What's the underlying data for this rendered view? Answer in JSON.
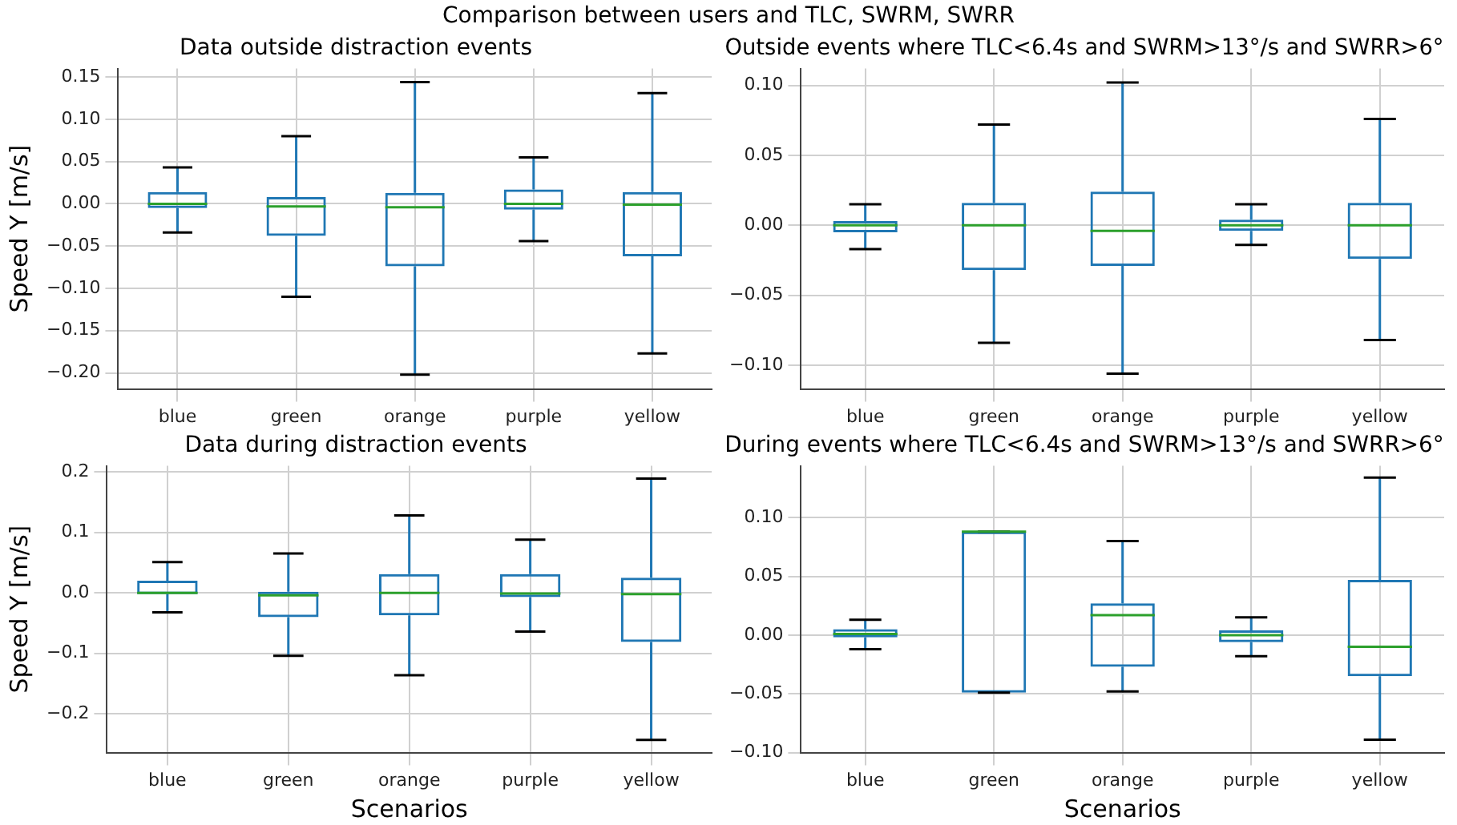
{
  "chart_data": [
    {
      "type": "box",
      "title": "Data outside distraction events",
      "ylabel": "Speed Y [m/s]",
      "annotations": [
        "Comparison between users and TLC, SWRM, SWRR"
      ],
      "categories": [
        "blue",
        "green",
        "orange",
        "purple",
        "yellow"
      ],
      "ylim": [
        -0.219,
        0.16
      ],
      "yticks": [
        {
          "value": 0.15,
          "label": "0.15"
        },
        {
          "value": 0.1,
          "label": "0.10"
        },
        {
          "value": 0.05,
          "label": "0.05"
        },
        {
          "value": 0,
          "label": "0.00"
        },
        {
          "value": -0.05,
          "label": "−0.05"
        },
        {
          "value": -0.1,
          "label": "−0.10"
        },
        {
          "value": -0.15,
          "label": "−0.15"
        },
        {
          "value": -0.2,
          "label": "−0.20"
        }
      ],
      "grid": true,
      "series": [
        {
          "color": "#1f77b4",
          "boxes": [
            {
              "low": -0.034,
              "q1": -0.005,
              "median": 0,
              "q3": 0.014,
              "high": 0.043
            },
            {
              "low": -0.11,
              "q1": -0.038,
              "median": -0.003,
              "q3": 0.008,
              "high": 0.08
            },
            {
              "low": -0.202,
              "q1": -0.074,
              "median": -0.004,
              "q3": 0.013,
              "high": 0.144
            },
            {
              "low": -0.044,
              "q1": -0.007,
              "median": 0,
              "q3": 0.017,
              "high": 0.055
            },
            {
              "low": -0.177,
              "q1": -0.062,
              "median": -0.001,
              "q3": 0.014,
              "high": 0.131
            }
          ]
        }
      ]
    },
    {
      "type": "box",
      "title": "Outside events where TLC<6.4s and SWRM>13°/s and SWRR>6°",
      "categories": [
        "blue",
        "green",
        "orange",
        "purple",
        "yellow"
      ],
      "ylim": [
        -0.117,
        0.112
      ],
      "yticks": [
        {
          "value": 0.1,
          "label": "0.10"
        },
        {
          "value": 0.05,
          "label": "0.05"
        },
        {
          "value": 0,
          "label": "0.00"
        },
        {
          "value": -0.05,
          "label": "−0.05"
        },
        {
          "value": -0.1,
          "label": "−0.10"
        }
      ],
      "grid": true,
      "series": [
        {
          "color": "#1f77b4",
          "boxes": [
            {
              "low": -0.017,
              "q1": -0.005,
              "median": 0,
              "q3": 0.003,
              "high": 0.015
            },
            {
              "low": -0.084,
              "q1": -0.032,
              "median": 0,
              "q3": 0.016,
              "high": 0.072
            },
            {
              "low": -0.106,
              "q1": -0.029,
              "median": -0.004,
              "q3": 0.024,
              "high": 0.102
            },
            {
              "low": -0.014,
              "q1": -0.004,
              "median": 0,
              "q3": 0.004,
              "high": 0.015
            },
            {
              "low": -0.082,
              "q1": -0.024,
              "median": 0,
              "q3": 0.016,
              "high": 0.076
            }
          ]
        }
      ]
    },
    {
      "type": "box",
      "title": "Data during distraction events",
      "xlabel": "Scenarios",
      "ylabel": "Speed Y [m/s]",
      "categories": [
        "blue",
        "green",
        "orange",
        "purple",
        "yellow"
      ],
      "ylim": [
        -0.264,
        0.21
      ],
      "yticks": [
        {
          "value": 0.2,
          "label": "0.2"
        },
        {
          "value": 0.1,
          "label": "0.1"
        },
        {
          "value": 0,
          "label": "0.0"
        },
        {
          "value": -0.1,
          "label": "−0.1"
        },
        {
          "value": -0.2,
          "label": "−0.2"
        }
      ],
      "grid": true,
      "series": [
        {
          "color": "#1f77b4",
          "boxes": [
            {
              "low": -0.032,
              "q1": -0.002,
              "median": 0,
              "q3": 0.02,
              "high": 0.051
            },
            {
              "low": -0.104,
              "q1": -0.04,
              "median": -0.004,
              "q3": 0.002,
              "high": 0.065
            },
            {
              "low": -0.136,
              "q1": -0.037,
              "median": 0,
              "q3": 0.031,
              "high": 0.128
            },
            {
              "low": -0.064,
              "q1": -0.007,
              "median": -0.001,
              "q3": 0.031,
              "high": 0.088
            },
            {
              "low": -0.243,
              "q1": -0.081,
              "median": -0.002,
              "q3": 0.025,
              "high": 0.189
            }
          ]
        }
      ]
    },
    {
      "type": "box",
      "title": "During events where TLC<6.4s and SWRM>13°/s and SWRR>6°",
      "xlabel": "Scenarios",
      "categories": [
        "blue",
        "green",
        "orange",
        "purple",
        "yellow"
      ],
      "ylim": [
        -0.1,
        0.144
      ],
      "yticks": [
        {
          "value": 0.1,
          "label": "0.10"
        },
        {
          "value": 0.05,
          "label": "0.05"
        },
        {
          "value": 0,
          "label": "0.00"
        },
        {
          "value": -0.05,
          "label": "−0.05"
        },
        {
          "value": -0.1,
          "label": "−0.10"
        }
      ],
      "grid": true,
      "series": [
        {
          "color": "#1f77b4",
          "boxes": [
            {
              "low": -0.012,
              "q1": -0.002,
              "median": 0.001,
              "q3": 0.005,
              "high": 0.013
            },
            {
              "low": -0.049,
              "q1": -0.049,
              "median": 0.088,
              "q3": 0.088,
              "high": 0.088
            },
            {
              "low": -0.048,
              "q1": -0.027,
              "median": 0.017,
              "q3": 0.027,
              "high": 0.08
            },
            {
              "low": -0.018,
              "q1": -0.006,
              "median": 0,
              "q3": 0.004,
              "high": 0.015
            },
            {
              "low": -0.089,
              "q1": -0.035,
              "median": -0.01,
              "q3": 0.047,
              "high": 0.134
            }
          ]
        }
      ]
    }
  ]
}
